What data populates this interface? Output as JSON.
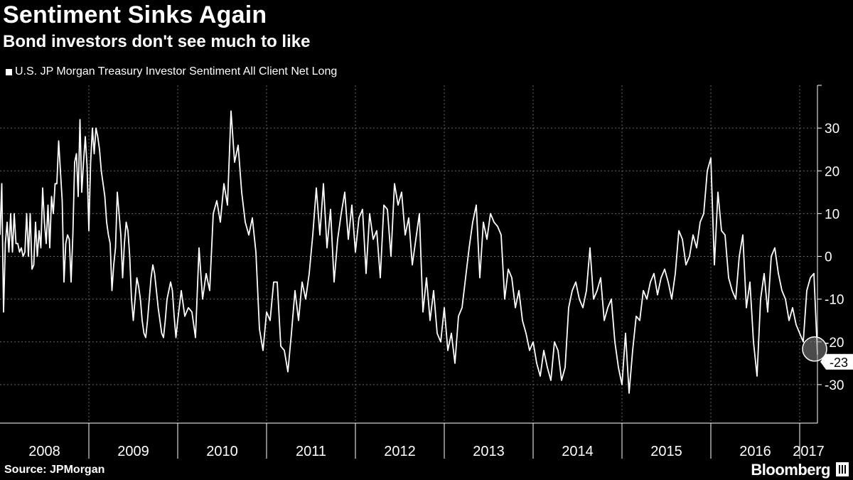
{
  "title": "Sentiment Sinks Again",
  "subtitle": "Bond investors don't see much to like",
  "legend_label": "U.S. JP Morgan Treasury Investor Sentiment All Client Net Long",
  "source": "Source: JPMorgan",
  "brand": "Bloomberg",
  "colors": {
    "background": "#000000",
    "line": "#ffffff",
    "grid": "#666666"
  },
  "chart_data": {
    "type": "line",
    "title": "Sentiment Sinks Again",
    "subtitle": "Bond investors don't see much to like",
    "xlabel": "",
    "ylabel": "",
    "ylim": [
      -39,
      40
    ],
    "xlim": [
      2008.0,
      2017.2
    ],
    "y_axis_side": "right",
    "grid": true,
    "legend": "top-left",
    "yticks": [
      30,
      20,
      10,
      0,
      -10,
      -20,
      -30
    ],
    "ytick_labels": [
      "30",
      "20",
      "10",
      "0",
      "-10",
      "-20",
      "-30"
    ],
    "xtick_labels": [
      "2008",
      "2009",
      "2010",
      "2011",
      "2012",
      "2013",
      "2014",
      "2015",
      "2016",
      "2017"
    ],
    "last_value_label": "-23",
    "series": [
      {
        "name": "U.S. JP Morgan Treasury Investor Sentiment All Client Net Long",
        "x": [
          2008.0,
          2008.02,
          2008.04,
          2008.06,
          2008.08,
          2008.1,
          2008.12,
          2008.14,
          2008.16,
          2008.18,
          2008.2,
          2008.22,
          2008.24,
          2008.26,
          2008.28,
          2008.3,
          2008.32,
          2008.34,
          2008.36,
          2008.38,
          2008.4,
          2008.42,
          2008.44,
          2008.46,
          2008.48,
          2008.5,
          2008.52,
          2008.54,
          2008.56,
          2008.58,
          2008.6,
          2008.62,
          2008.64,
          2008.66,
          2008.68,
          2008.7,
          2008.72,
          2008.74,
          2008.76,
          2008.78,
          2008.8,
          2008.82,
          2008.84,
          2008.86,
          2008.88,
          2008.9,
          2008.92,
          2008.94,
          2008.96,
          2008.98,
          2009.0,
          2009.02,
          2009.04,
          2009.06,
          2009.08,
          2009.1,
          2009.12,
          2009.14,
          2009.16,
          2009.18,
          2009.2,
          2009.22,
          2009.24,
          2009.26,
          2009.28,
          2009.3,
          2009.32,
          2009.34,
          2009.36,
          2009.38,
          2009.4,
          2009.42,
          2009.44,
          2009.46,
          2009.48,
          2009.5,
          2009.52,
          2009.54,
          2009.56,
          2009.58,
          2009.6,
          2009.62,
          2009.64,
          2009.66,
          2009.68,
          2009.7,
          2009.72,
          2009.74,
          2009.76,
          2009.78,
          2009.8,
          2009.82,
          2009.84,
          2009.86,
          2009.88,
          2009.9,
          2009.92,
          2009.94,
          2009.96,
          2009.98,
          2010.0,
          2010.04,
          2010.08,
          2010.12,
          2010.16,
          2010.2,
          2010.24,
          2010.28,
          2010.32,
          2010.36,
          2010.4,
          2010.44,
          2010.48,
          2010.52,
          2010.56,
          2010.6,
          2010.64,
          2010.68,
          2010.72,
          2010.76,
          2010.8,
          2010.84,
          2010.88,
          2010.92,
          2010.96,
          2011.0,
          2011.04,
          2011.08,
          2011.12,
          2011.16,
          2011.2,
          2011.24,
          2011.28,
          2011.32,
          2011.36,
          2011.4,
          2011.44,
          2011.48,
          2011.52,
          2011.56,
          2011.6,
          2011.64,
          2011.68,
          2011.72,
          2011.76,
          2011.8,
          2011.84,
          2011.88,
          2011.92,
          2011.96,
          2012.0,
          2012.04,
          2012.08,
          2012.12,
          2012.16,
          2012.2,
          2012.24,
          2012.28,
          2012.32,
          2012.36,
          2012.4,
          2012.44,
          2012.48,
          2012.52,
          2012.56,
          2012.6,
          2012.64,
          2012.68,
          2012.72,
          2012.76,
          2012.8,
          2012.84,
          2012.88,
          2012.92,
          2012.96,
          2013.0,
          2013.04,
          2013.08,
          2013.12,
          2013.16,
          2013.2,
          2013.24,
          2013.28,
          2013.32,
          2013.36,
          2013.4,
          2013.44,
          2013.48,
          2013.52,
          2013.56,
          2013.6,
          2013.64,
          2013.68,
          2013.72,
          2013.76,
          2013.8,
          2013.84,
          2013.88,
          2013.92,
          2013.96,
          2014.0,
          2014.04,
          2014.08,
          2014.12,
          2014.16,
          2014.2,
          2014.24,
          2014.28,
          2014.32,
          2014.36,
          2014.4,
          2014.44,
          2014.48,
          2014.52,
          2014.56,
          2014.6,
          2014.64,
          2014.68,
          2014.72,
          2014.76,
          2014.8,
          2014.84,
          2014.88,
          2014.92,
          2014.96,
          2015.0,
          2015.04,
          2015.08,
          2015.12,
          2015.16,
          2015.2,
          2015.24,
          2015.28,
          2015.32,
          2015.36,
          2015.4,
          2015.44,
          2015.48,
          2015.52,
          2015.56,
          2015.6,
          2015.64,
          2015.68,
          2015.72,
          2015.76,
          2015.8,
          2015.84,
          2015.88,
          2015.92,
          2015.96,
          2016.0,
          2016.04,
          2016.08,
          2016.12,
          2016.16,
          2016.2,
          2016.24,
          2016.28,
          2016.32,
          2016.36,
          2016.4,
          2016.44,
          2016.48,
          2016.52,
          2016.56,
          2016.6,
          2016.64,
          2016.68,
          2016.72,
          2016.76,
          2016.8,
          2016.84,
          2016.88,
          2016.92,
          2016.96,
          2017.0,
          2017.04,
          2017.08,
          2017.12,
          2017.16,
          2017.2
        ],
        "y": [
          5,
          17,
          -13,
          3,
          8,
          1,
          10,
          1,
          10,
          3,
          3,
          1,
          2,
          0,
          1,
          10,
          0,
          10,
          -3,
          -2,
          8,
          0,
          6,
          2,
          16,
          8,
          3,
          12,
          2,
          14,
          10,
          17,
          17,
          27,
          20,
          13,
          -6,
          3,
          5,
          4,
          -6,
          5,
          22,
          24,
          14,
          32,
          15,
          22,
          28,
          21,
          6,
          22,
          30,
          24,
          30,
          28,
          25,
          20,
          17,
          14,
          8,
          5,
          3,
          -8,
          -2,
          2,
          15,
          10,
          5,
          -5,
          3,
          8,
          6,
          0,
          -10,
          -15,
          -10,
          -5,
          -7,
          -10,
          -15,
          -18,
          -19,
          -15,
          -10,
          -5,
          -2,
          -4,
          -8,
          -12,
          -15,
          -18,
          -19,
          -15,
          -10,
          -8,
          -6,
          -8,
          -14,
          -19,
          -15,
          -8,
          -14,
          -12,
          -13,
          -19,
          2,
          -10,
          -4,
          -8,
          10,
          13,
          8,
          17,
          12,
          34,
          22,
          26,
          15,
          8,
          5,
          9,
          1,
          -17,
          -22,
          -13,
          -15,
          -6,
          -6,
          -21,
          -22,
          -27,
          -18,
          -8,
          -15,
          -6,
          -10,
          -4,
          5,
          16,
          5,
          17,
          2,
          11,
          -6,
          4,
          10,
          15,
          4,
          12,
          1,
          9,
          11,
          -4,
          10,
          4,
          6,
          -5,
          12,
          11,
          0,
          17,
          12,
          15,
          5,
          9,
          -2,
          4,
          10,
          -13,
          -5,
          -15,
          -8,
          -18,
          -20,
          -12,
          -22,
          -18,
          -25,
          -14,
          -12,
          -5,
          2,
          8,
          12,
          -5,
          8,
          4,
          10,
          8,
          7,
          5,
          -10,
          -3,
          -5,
          -12,
          -8,
          -15,
          -18,
          -22,
          -20,
          -25,
          -28,
          -22,
          -26,
          -29,
          -20,
          -22,
          -29,
          -26,
          -12,
          -8,
          -6,
          -10,
          -12,
          -8,
          2,
          -10,
          -8,
          -5,
          -15,
          -12,
          -10,
          -20,
          -26,
          -30,
          -18,
          -32,
          -22,
          -14,
          -15,
          -8,
          -10,
          -6,
          -4,
          -9,
          -5,
          -3,
          -6,
          -10,
          -4,
          6,
          4,
          -2,
          0,
          5,
          2,
          8,
          10,
          20,
          23,
          -2,
          15,
          6,
          5,
          -5,
          -8,
          -10,
          0,
          5,
          -12,
          -6,
          -20,
          -28,
          -10,
          -4,
          -13,
          0,
          2,
          -4,
          -8,
          -10,
          -15,
          -12,
          -16,
          -18,
          -20,
          -8,
          -5,
          -4,
          -23
        ],
        "values_note": ""
      }
    ]
  }
}
